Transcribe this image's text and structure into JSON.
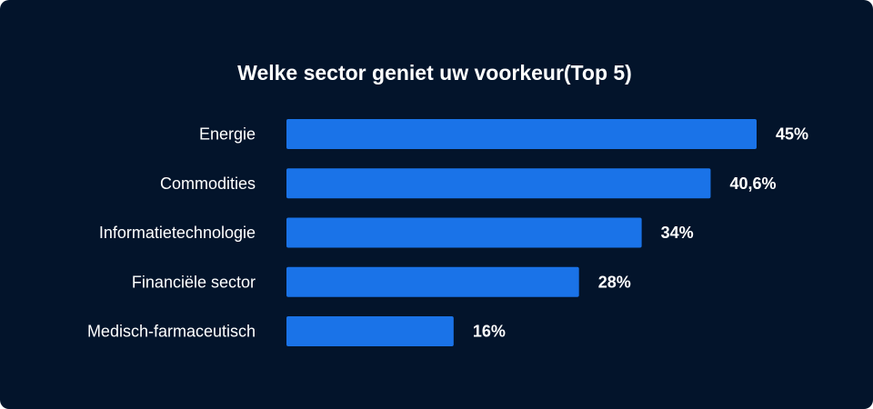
{
  "colors": {
    "background": "#03142b",
    "bar": "#1a73e8",
    "text": "#ffffff"
  },
  "chart_data": {
    "type": "bar",
    "orientation": "horizontal",
    "title": "Welke sector geniet uw voorkeur(Top 5)",
    "categories": [
      "Energie",
      "Commodities",
      "Informatietechnologie",
      "Financiële sector",
      "Medisch-farmaceutisch"
    ],
    "values": [
      45,
      40.6,
      34,
      28,
      16
    ],
    "value_labels": [
      "45%",
      "40,6%",
      "34%",
      "28%",
      "16%"
    ],
    "unit": "%",
    "xlim": [
      0,
      45
    ],
    "grid": false,
    "legend": "none"
  }
}
